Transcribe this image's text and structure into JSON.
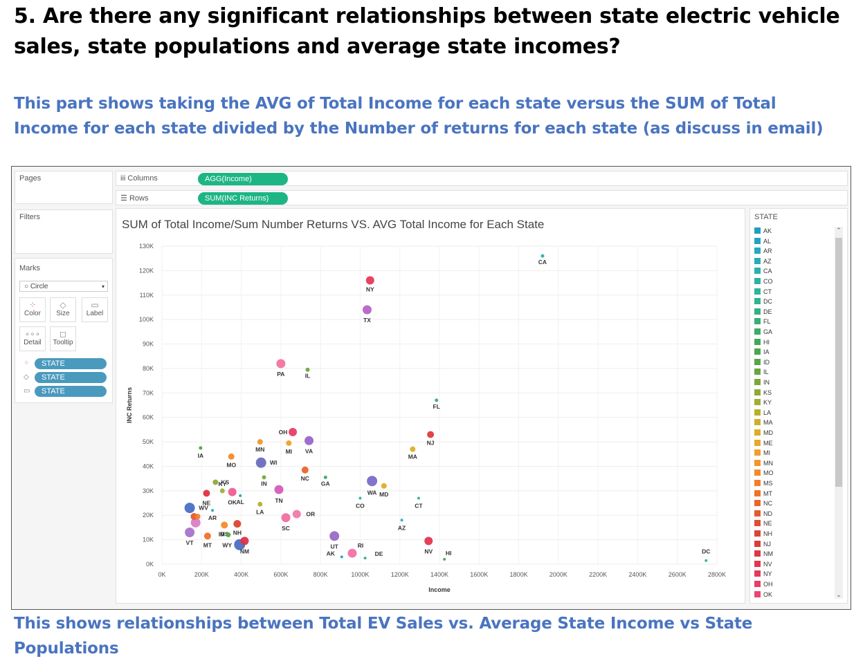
{
  "heading": "5. Are there any significant relationships between state electric vehicle sales, state populations and average state incomes?",
  "subheading": "This part shows taking the AVG of Total Income for each state versus the SUM of Total Income for each state divided by the Number of returns for each state (as discuss in email)",
  "footer": "This shows relationships between Total EV Sales vs. Average State Income vs State Populations",
  "panels": {
    "pages": "Pages",
    "filters": "Filters",
    "marks": "Marks",
    "columns_label": "Columns",
    "rows_label": "Rows",
    "columns_pill": "AGG(Income)",
    "rows_pill": "SUM(INC Returns)",
    "mark_type": "Circle",
    "color": "Color",
    "size": "Size",
    "label": "Label",
    "detail": "Detail",
    "tooltip": "Tooltip",
    "mark_pills": [
      "STATE",
      "STATE",
      "STATE"
    ],
    "legend_title": "STATE"
  },
  "legend": [
    {
      "s": "AK",
      "c": "#1f9fbf"
    },
    {
      "s": "AL",
      "c": "#20a3c1"
    },
    {
      "s": "AR",
      "c": "#24a8be"
    },
    {
      "s": "AZ",
      "c": "#28acb6"
    },
    {
      "s": "CA",
      "c": "#2cb0ac"
    },
    {
      "s": "CO",
      "c": "#2fb2a4"
    },
    {
      "s": "CT",
      "c": "#31b39a"
    },
    {
      "s": "DC",
      "c": "#33b28f"
    },
    {
      "s": "DE",
      "c": "#35b083"
    },
    {
      "s": "FL",
      "c": "#38ae76"
    },
    {
      "s": "GA",
      "c": "#3cab68"
    },
    {
      "s": "HI",
      "c": "#42a85a"
    },
    {
      "s": "IA",
      "c": "#4aa64f"
    },
    {
      "s": "ID",
      "c": "#58a644"
    },
    {
      "s": "IL",
      "c": "#68a73d"
    },
    {
      "s": "IN",
      "c": "#7aa839"
    },
    {
      "s": "KS",
      "c": "#8eab35"
    },
    {
      "s": "KY",
      "c": "#a3ad31"
    },
    {
      "s": "LA",
      "c": "#b8af2d"
    },
    {
      "s": "MA",
      "c": "#cbb02b"
    },
    {
      "s": "MD",
      "c": "#dcae29"
    },
    {
      "s": "ME",
      "c": "#e9a828"
    },
    {
      "s": "MI",
      "c": "#f09f28"
    },
    {
      "s": "MN",
      "c": "#f39528"
    },
    {
      "s": "MO",
      "c": "#f48a29"
    },
    {
      "s": "MS",
      "c": "#f27e2a"
    },
    {
      "s": "MT",
      "c": "#ef722b"
    },
    {
      "s": "NC",
      "c": "#ea662c"
    },
    {
      "s": "ND",
      "c": "#e55a2e"
    },
    {
      "s": "NE",
      "c": "#e04f31"
    },
    {
      "s": "NH",
      "c": "#dc4535"
    },
    {
      "s": "NJ",
      "c": "#dc3d3b"
    },
    {
      "s": "NM",
      "c": "#de3844"
    },
    {
      "s": "NV",
      "c": "#e2374e"
    },
    {
      "s": "NY",
      "c": "#e6395a"
    },
    {
      "s": "OH",
      "c": "#e83d66"
    },
    {
      "s": "OK",
      "c": "#ea4472"
    }
  ],
  "chart_data": {
    "type": "scatter",
    "title": "SUM of Total Income/Sum Number Returns VS. AVG Total Income for Each State",
    "xlabel": "Income",
    "ylabel": "INC Returns",
    "xlim": [
      0,
      2800000
    ],
    "ylim": [
      0,
      130000
    ],
    "xticks": [
      0,
      200000,
      400000,
      600000,
      800000,
      1000000,
      1200000,
      1400000,
      1600000,
      1800000,
      2000000,
      2200000,
      2400000,
      2600000,
      2800000
    ],
    "xtick_labels": [
      "0K",
      "200K",
      "400K",
      "600K",
      "800K",
      "1000K",
      "1200K",
      "1400K",
      "1600K",
      "1800K",
      "2000K",
      "2200K",
      "2400K",
      "2600K",
      "2800K"
    ],
    "yticks": [
      0,
      10000,
      20000,
      30000,
      40000,
      50000,
      60000,
      70000,
      80000,
      90000,
      100000,
      110000,
      120000,
      130000
    ],
    "ytick_labels": [
      "0K",
      "10K",
      "20K",
      "30K",
      "40K",
      "50K",
      "60K",
      "70K",
      "80K",
      "90K",
      "100K",
      "110K",
      "120K",
      "130K"
    ],
    "grid": true,
    "legend": "right",
    "points": [
      {
        "s": "CA",
        "x": 1920000,
        "y": 126000,
        "r": 2.5,
        "c": "#2cb0ac",
        "ldx": 0,
        "ldy": 12
      },
      {
        "s": "NY",
        "x": 1050000,
        "y": 116000,
        "r": 6,
        "c": "#e6395a",
        "ldx": 0,
        "ldy": 16
      },
      {
        "s": "TX",
        "x": 1035000,
        "y": 104000,
        "r": 6.5,
        "c": "#b565c4",
        "ldx": 0,
        "ldy": 18
      },
      {
        "s": "PA",
        "x": 600000,
        "y": 82000,
        "r": 6.5,
        "c": "#f2739e",
        "ldx": 0,
        "ldy": 18
      },
      {
        "s": "IL",
        "x": 735000,
        "y": 79500,
        "r": 3,
        "c": "#68a73d",
        "ldx": 0,
        "ldy": 12
      },
      {
        "s": "FL",
        "x": 1385000,
        "y": 67000,
        "r": 2.5,
        "c": "#38ae76",
        "ldx": 0,
        "ldy": 12
      },
      {
        "s": "NJ",
        "x": 1355000,
        "y": 53000,
        "r": 5,
        "c": "#dc3d3b",
        "ldx": 0,
        "ldy": 15
      },
      {
        "s": "OH",
        "x": 660000,
        "y": 54000,
        "r": 6,
        "c": "#e83d66",
        "ldx": -14,
        "ldy": 3
      },
      {
        "s": "VA",
        "x": 742000,
        "y": 50500,
        "r": 6.5,
        "c": "#9966c9",
        "ldx": 0,
        "ldy": 18
      },
      {
        "s": "MN",
        "x": 495000,
        "y": 50000,
        "r": 4,
        "c": "#f39528",
        "ldx": 0,
        "ldy": 14
      },
      {
        "s": "MI",
        "x": 640000,
        "y": 49500,
        "r": 4,
        "c": "#f09f28",
        "ldx": 0,
        "ldy": 15
      },
      {
        "s": "MA",
        "x": 1265000,
        "y": 47000,
        "r": 4,
        "c": "#dcae29",
        "ldx": 0,
        "ldy": 14
      },
      {
        "s": "IA",
        "x": 195000,
        "y": 47500,
        "r": 2.5,
        "c": "#4aa64f",
        "ldx": 0,
        "ldy": 14
      },
      {
        "s": "MO",
        "x": 350000,
        "y": 44000,
        "r": 4.5,
        "c": "#f48a29",
        "ldx": 0,
        "ldy": 15
      },
      {
        "s": "WI",
        "x": 500000,
        "y": 41500,
        "r": 7.5,
        "c": "#6b6bbf",
        "ldx": 18,
        "ldy": 3
      },
      {
        "s": "NC",
        "x": 722000,
        "y": 38500,
        "r": 5,
        "c": "#ea662c",
        "ldx": 0,
        "ldy": 15
      },
      {
        "s": "GA",
        "x": 825000,
        "y": 35500,
        "r": 2.5,
        "c": "#3cab68",
        "ldx": 0,
        "ldy": 12
      },
      {
        "s": "IN",
        "x": 515000,
        "y": 35500,
        "r": 3,
        "c": "#7aa839",
        "ldx": 0,
        "ldy": 12
      },
      {
        "s": "WA",
        "x": 1060000,
        "y": 34000,
        "r": 7.5,
        "c": "#7a6dc8",
        "ldx": 0,
        "ldy": 20
      },
      {
        "s": "MD",
        "x": 1120000,
        "y": 32000,
        "r": 4,
        "c": "#dcae29",
        "ldx": 0,
        "ldy": 15
      },
      {
        "s": "KS",
        "x": 270000,
        "y": 33500,
        "r": 4,
        "c": "#8eab35",
        "ldx": 14,
        "ldy": 3
      },
      {
        "s": "KY",
        "x": 305000,
        "y": 30000,
        "r": 3.5,
        "c": "#a3ad31",
        "ldx": 0,
        "ldy": -7
      },
      {
        "s": "OK",
        "x": 355000,
        "y": 29500,
        "r": 6,
        "c": "#f05d92",
        "ldx": 0,
        "ldy": 18
      },
      {
        "s": "AL",
        "x": 395000,
        "y": 28000,
        "r": 2,
        "c": "#20a3c1",
        "ldx": 0,
        "ldy": 12
      },
      {
        "s": "NE",
        "x": 225000,
        "y": 29000,
        "r": 5,
        "c": "#e03040",
        "ldx": 0,
        "ldy": 17
      },
      {
        "s": "TN",
        "x": 590000,
        "y": 30500,
        "r": 6.5,
        "c": "#d65cba",
        "ldx": 0,
        "ldy": 19
      },
      {
        "s": "CO",
        "x": 1000000,
        "y": 27000,
        "r": 2,
        "c": "#2fb2a4",
        "ldx": 0,
        "ldy": 14
      },
      {
        "s": "CT",
        "x": 1295000,
        "y": 27000,
        "r": 2,
        "c": "#31b39a",
        "ldx": 0,
        "ldy": 14
      },
      {
        "s": "LA",
        "x": 495000,
        "y": 24500,
        "r": 3.5,
        "c": "#b8af2d",
        "ldx": 0,
        "ldy": 14
      },
      {
        "s": "AR",
        "x": 255000,
        "y": 22000,
        "r": 2,
        "c": "#24a8be",
        "ldx": 0,
        "ldy": 14
      },
      {
        "s": "WV",
        "x": 140000,
        "y": 23000,
        "r": 7.5,
        "c": "#4a6fc4",
        "ldx": 20,
        "ldy": 3
      },
      {
        "s": "OR",
        "x": 680000,
        "y": 20500,
        "r": 6,
        "c": "#f07aa8",
        "ldx": 20,
        "ldy": 3
      },
      {
        "s": "SC",
        "x": 625000,
        "y": 19000,
        "r": 6.5,
        "c": "#f06ea0",
        "ldx": 0,
        "ldy": 18
      },
      {
        "s": "AZ",
        "x": 1210000,
        "y": 18000,
        "r": 2,
        "c": "#28acb6",
        "ldx": 0,
        "ldy": 14
      },
      {
        "s": "VT",
        "x": 140000,
        "y": 13000,
        "r": 7,
        "c": "#a874c9",
        "ldx": 0,
        "ldy": 18
      },
      {
        "s": "ME",
        "x": 170000,
        "y": 17000,
        "r": 7,
        "c": "#d97ec8",
        "ldx": 0,
        "ldy": 0
      },
      {
        "s": "ND",
        "x": 162000,
        "y": 19500,
        "r": 5,
        "c": "#e55a2e",
        "ldx": 0,
        "ldy": 0
      },
      {
        "s": "MS",
        "x": 180000,
        "y": 19500,
        "r": 4,
        "c": "#f27e2a",
        "ldx": 0,
        "ldy": 0
      },
      {
        "s": "MT",
        "x": 230000,
        "y": 11500,
        "r": 5,
        "c": "#ef722b",
        "ldx": 0,
        "ldy": 16
      },
      {
        "s": "MS",
        "x": 315000,
        "y": 16000,
        "r": 5,
        "c": "#f48a29",
        "ldx": 0,
        "ldy": 16
      },
      {
        "s": "ID",
        "x": 335000,
        "y": 12000,
        "r": 3.5,
        "c": "#58a644",
        "ldx": -10,
        "ldy": 2
      },
      {
        "s": "NH",
        "x": 380000,
        "y": 16500,
        "r": 5.5,
        "c": "#dc4535",
        "ldx": 0,
        "ldy": 16
      },
      {
        "s": "WY",
        "x": 392000,
        "y": 8000,
        "r": 8,
        "c": "#4a6fc4",
        "ldx": -18,
        "ldy": 4
      },
      {
        "s": "NM",
        "x": 417000,
        "y": 9500,
        "r": 6,
        "c": "#e0304a",
        "ldx": 0,
        "ldy": 18
      },
      {
        "s": "UT",
        "x": 870000,
        "y": 11500,
        "r": 7,
        "c": "#9b6ac4",
        "ldx": 0,
        "ldy": 18
      },
      {
        "s": "RI",
        "x": 960000,
        "y": 4500,
        "r": 6.5,
        "c": "#f272a8",
        "ldx": 12,
        "ldy": -8
      },
      {
        "s": "AK",
        "x": 907000,
        "y": 3000,
        "r": 2,
        "c": "#1f9fbf",
        "ldx": -16,
        "ldy": -2
      },
      {
        "s": "DE",
        "x": 1025000,
        "y": 2500,
        "r": 2,
        "c": "#35b083",
        "ldx": 20,
        "ldy": -3
      },
      {
        "s": "NV",
        "x": 1345000,
        "y": 9500,
        "r": 6,
        "c": "#e2374e",
        "ldx": 0,
        "ldy": 18
      },
      {
        "s": "HI",
        "x": 1425000,
        "y": 2000,
        "r": 2,
        "c": "#42a85a",
        "ldx": 6,
        "ldy": -6
      },
      {
        "s": "DC",
        "x": 2745000,
        "y": 1500,
        "r": 2,
        "c": "#33b28f",
        "ldx": 0,
        "ldy": -10
      }
    ]
  }
}
